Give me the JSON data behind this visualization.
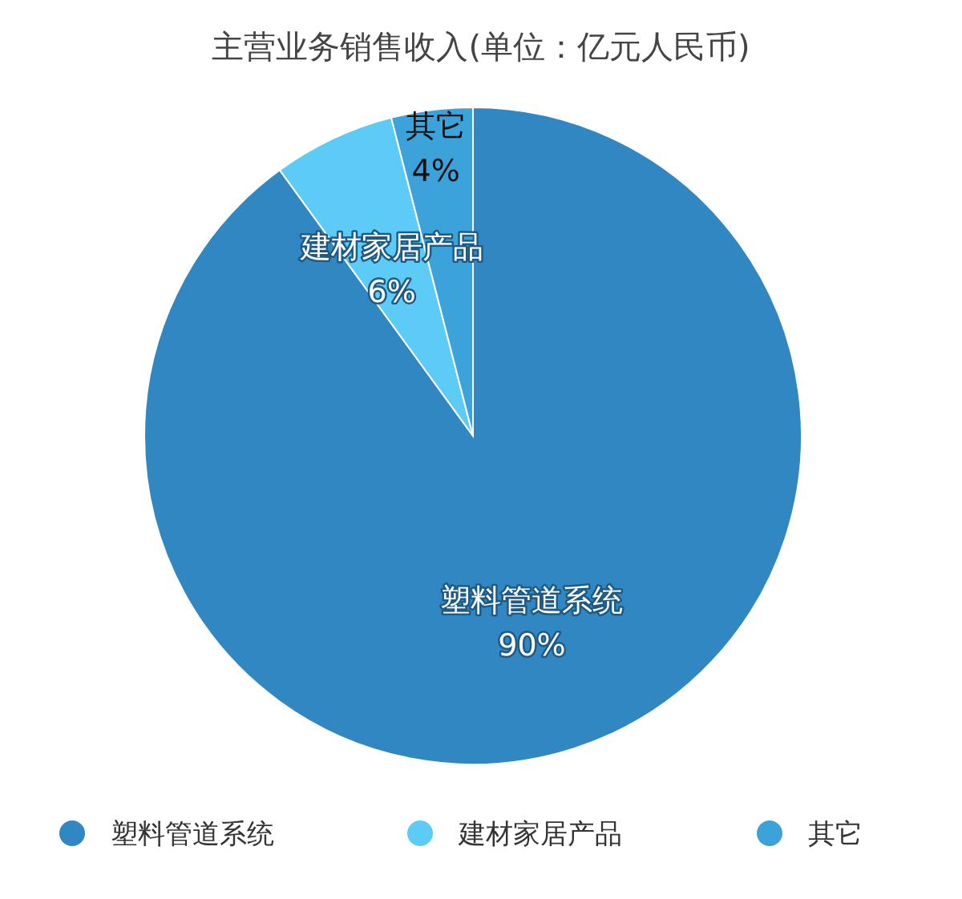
{
  "chart_data": {
    "type": "pie",
    "title": "主营业务销售收入(单位：亿元人民币)",
    "categories": [
      "塑料管道系统",
      "建材家居产品",
      "其它"
    ],
    "values": [
      90,
      6,
      4
    ],
    "colors": [
      "#3087c1",
      "#5ccbf6",
      "#3ca3da"
    ],
    "value_labels": [
      "90%",
      "6%",
      "4%"
    ],
    "legend": "bottom"
  }
}
